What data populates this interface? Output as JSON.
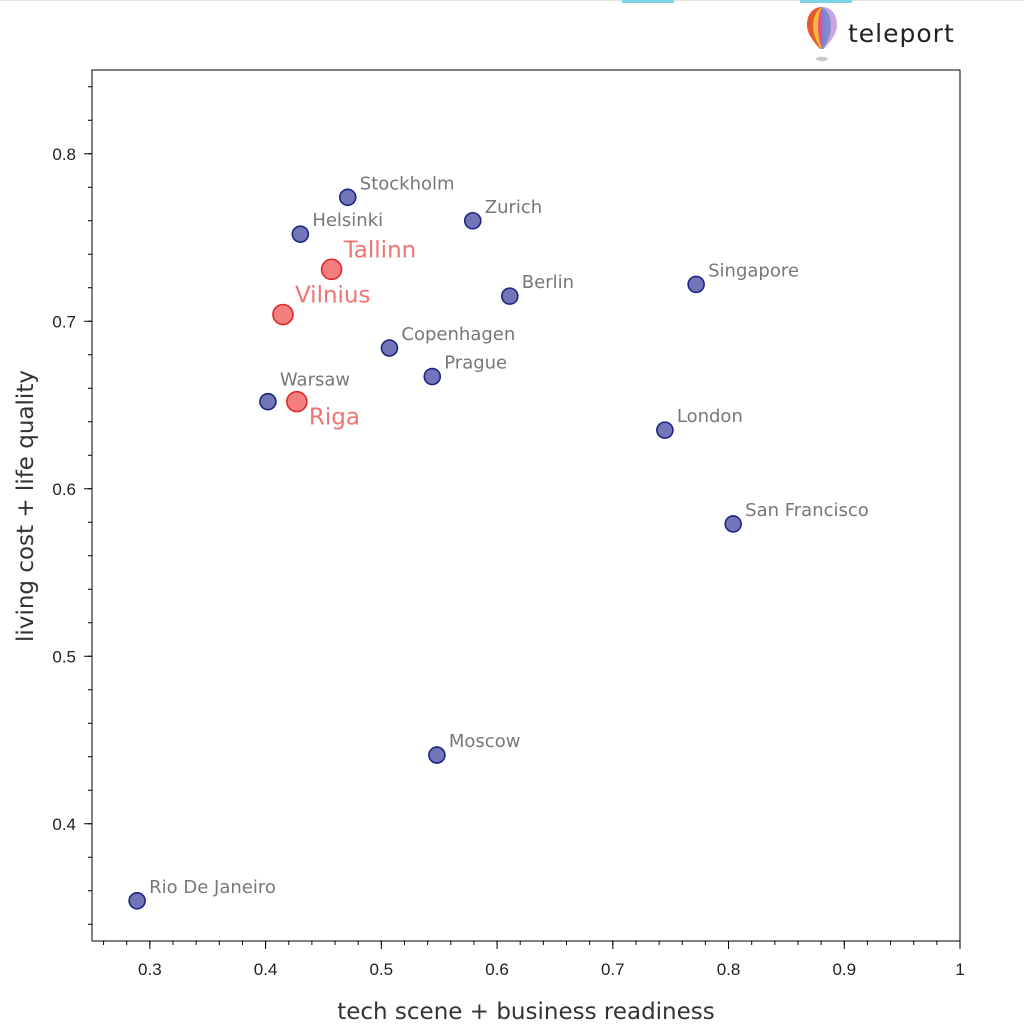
{
  "logo": {
    "text": "teleport",
    "icon": "hot-air-balloon-icon"
  },
  "chart_data": {
    "type": "scatter",
    "xlabel": "tech scene + business readiness",
    "ylabel": "living cost + life quality",
    "xlim": [
      0.25,
      1.0
    ],
    "ylim": [
      0.33,
      0.85
    ],
    "xticks": [
      "0.3",
      "0.4",
      "0.5",
      "0.6",
      "0.7",
      "0.8",
      "0.9",
      "1"
    ],
    "xtick_values": [
      0.3,
      0.4,
      0.5,
      0.6,
      0.7,
      0.8,
      0.9,
      1.0
    ],
    "yticks": [
      "0.4",
      "0.5",
      "0.6",
      "0.7",
      "0.8"
    ],
    "ytick_values": [
      0.4,
      0.5,
      0.6,
      0.7,
      0.8
    ],
    "grid": false,
    "colors": {
      "default": "#7176b8",
      "default_stroke": "#1e2385",
      "highlight": "#f57e7e",
      "highlight_stroke": "#e02a2a",
      "highlight_label": "#f07474",
      "label": "#777777"
    },
    "points": [
      {
        "name": "Stockholm",
        "x": 0.471,
        "y": 0.774,
        "highlight": false
      },
      {
        "name": "Zurich",
        "x": 0.579,
        "y": 0.76,
        "highlight": false
      },
      {
        "name": "Helsinki",
        "x": 0.43,
        "y": 0.752,
        "highlight": false
      },
      {
        "name": "Tallinn",
        "x": 0.457,
        "y": 0.731,
        "highlight": true
      },
      {
        "name": "Singapore",
        "x": 0.772,
        "y": 0.722,
        "highlight": false
      },
      {
        "name": "Berlin",
        "x": 0.611,
        "y": 0.715,
        "highlight": false
      },
      {
        "name": "Vilnius",
        "x": 0.415,
        "y": 0.704,
        "highlight": true
      },
      {
        "name": "Copenhagen",
        "x": 0.507,
        "y": 0.684,
        "highlight": false
      },
      {
        "name": "Prague",
        "x": 0.544,
        "y": 0.667,
        "highlight": false
      },
      {
        "name": "Warsaw",
        "x": 0.402,
        "y": 0.652,
        "highlight": false
      },
      {
        "name": "Riga",
        "x": 0.427,
        "y": 0.652,
        "highlight": true
      },
      {
        "name": "London",
        "x": 0.745,
        "y": 0.635,
        "highlight": false
      },
      {
        "name": "San Francisco",
        "x": 0.804,
        "y": 0.579,
        "highlight": false
      },
      {
        "name": "Moscow",
        "x": 0.548,
        "y": 0.441,
        "highlight": false
      },
      {
        "name": "Rio De Janeiro",
        "x": 0.289,
        "y": 0.354,
        "highlight": false
      }
    ]
  }
}
